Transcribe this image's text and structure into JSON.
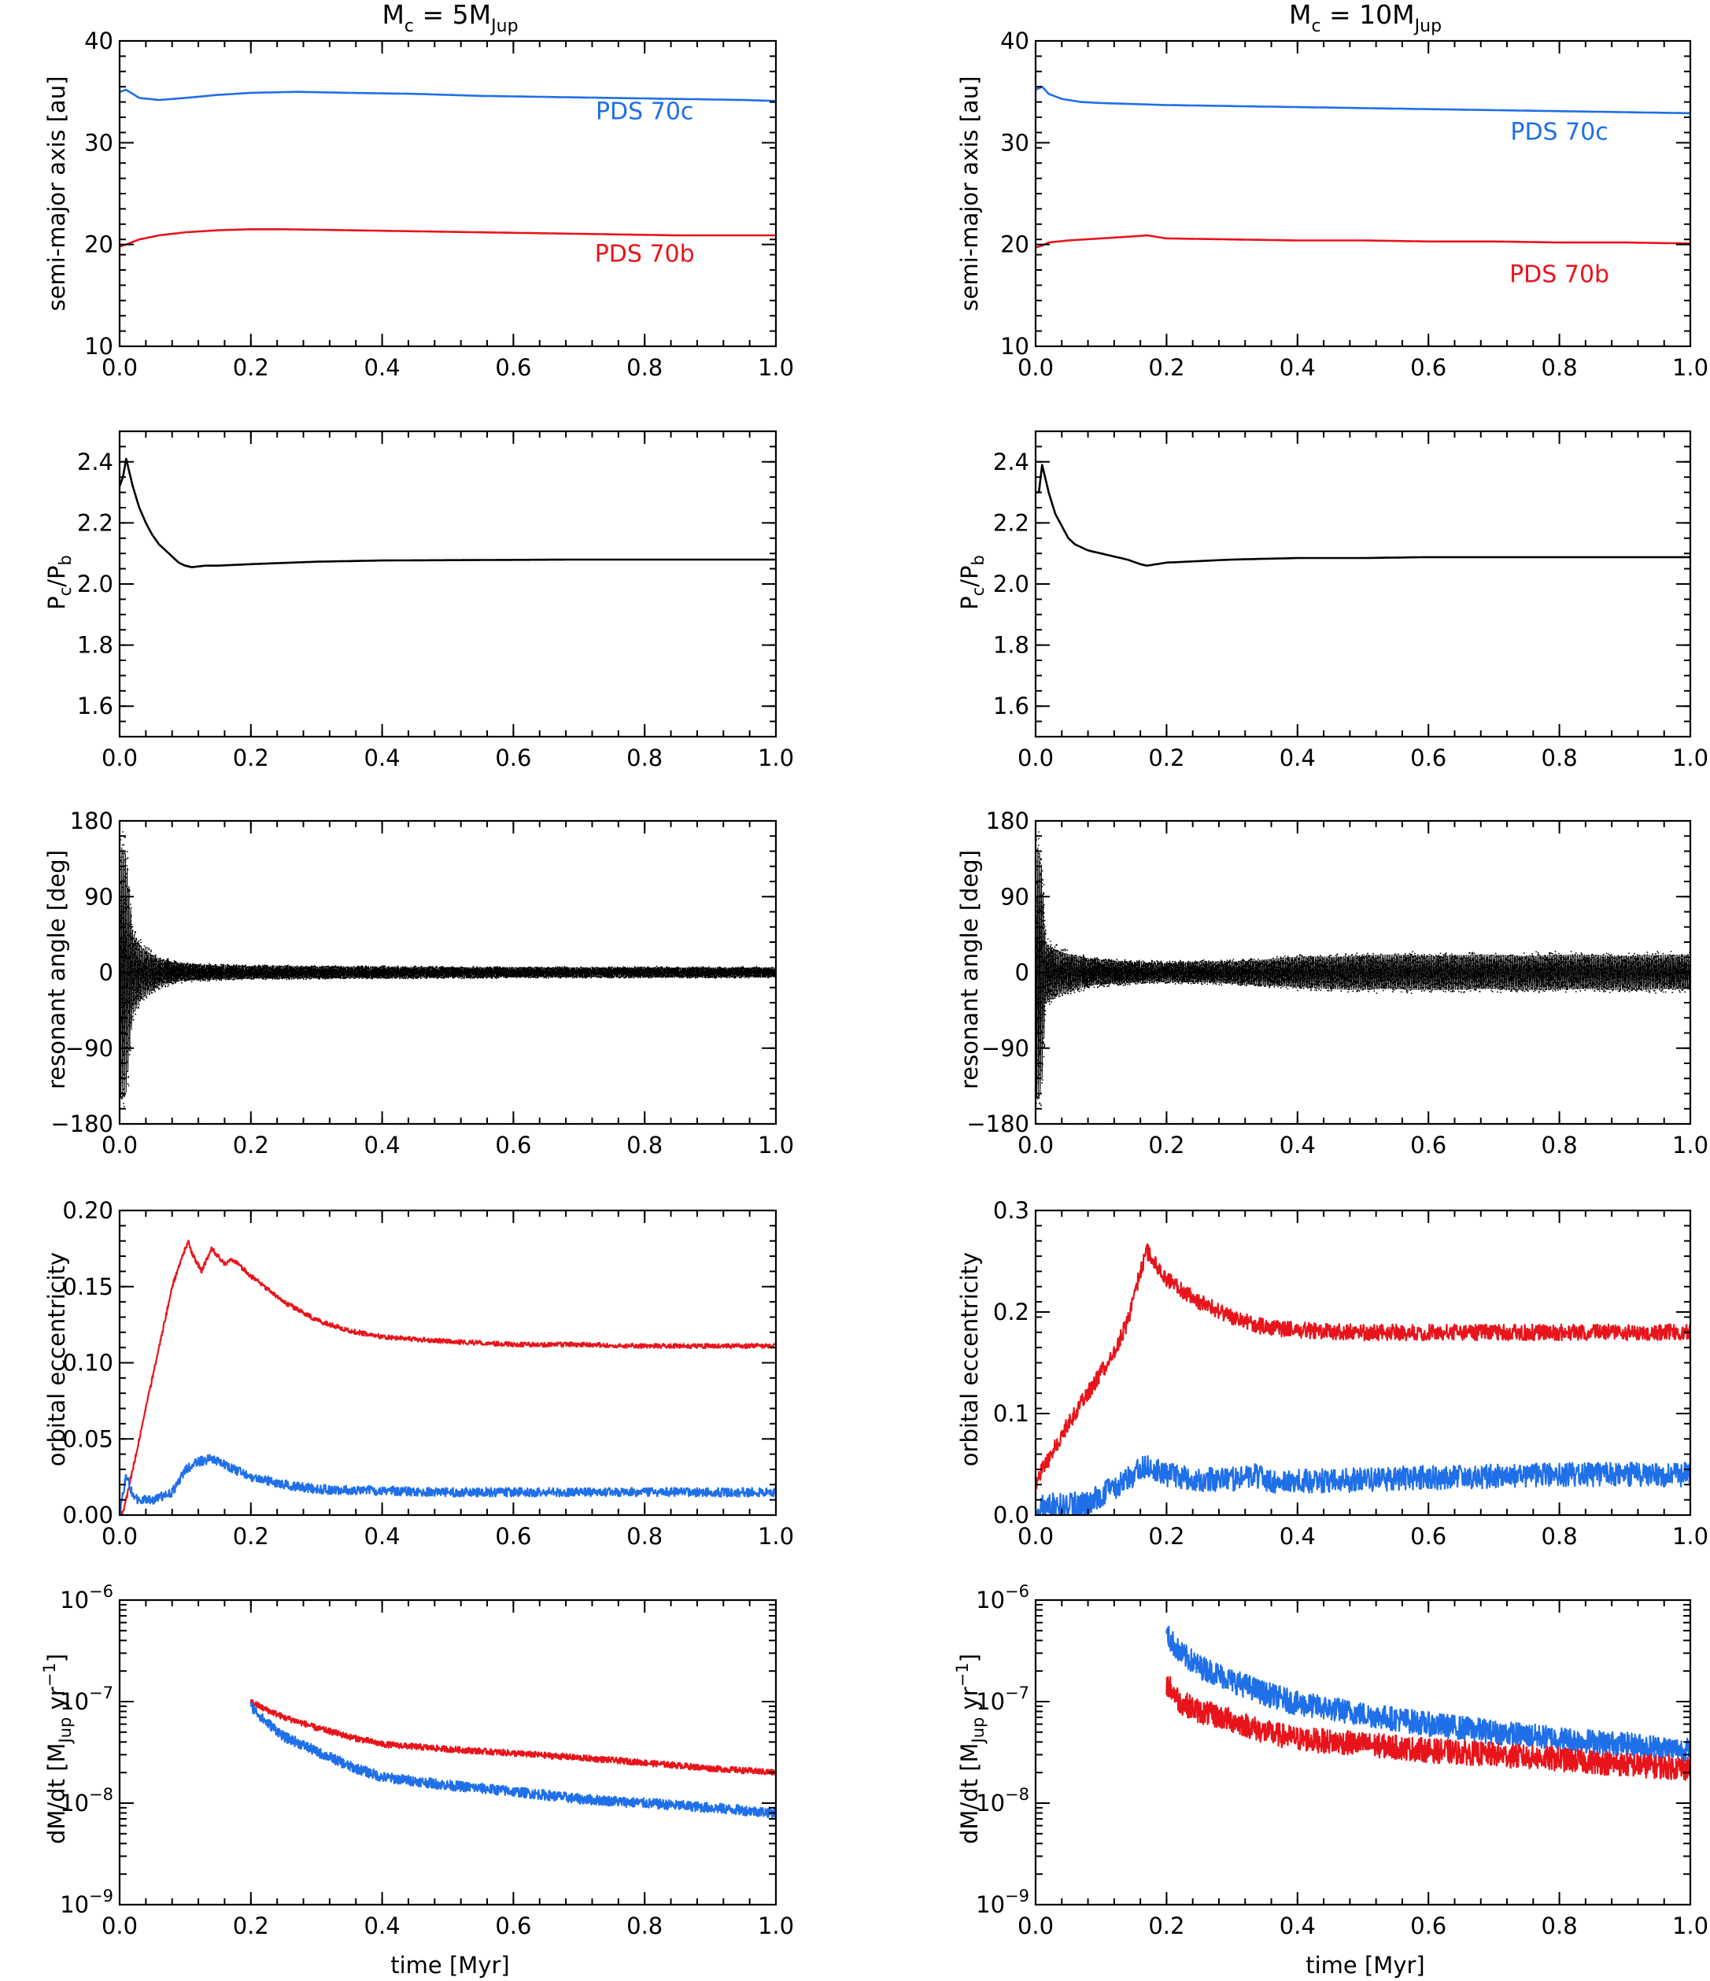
{
  "figure": {
    "columns": [
      {
        "title": "M_c = 5M_Jup",
        "title_parts": {
          "main": "M",
          "sub": "c",
          "eq": " = 5M",
          "sub2": "Jup"
        }
      },
      {
        "title": "M_c = 10M_Jup",
        "title_parts": {
          "main": "M",
          "sub": "c",
          "eq": " = 10M",
          "sub2": "Jup"
        }
      }
    ],
    "xlabel": "time [Myr]",
    "row_ylabels": {
      "sma": "semi-major axis [au]",
      "period": "P_c/P_b",
      "angle": "resonant angle [deg]",
      "ecc": "orbital eccentricity",
      "mdot": "dM/dt [M_Jup yr^-1]"
    },
    "colors": {
      "red": "#e8141b",
      "blue": "#1f6fe8",
      "black": "#000000"
    }
  },
  "chart_data": [
    {
      "id": "sma-5",
      "type": "line",
      "ylabel": "semi-major axis [au]",
      "xlabel": "",
      "xlim": [
        0,
        1
      ],
      "ylim": [
        10,
        40
      ],
      "xticks": [
        "0.0",
        "0.2",
        "0.4",
        "0.6",
        "0.8",
        "1.0"
      ],
      "yticks": [
        "10",
        "20",
        "30",
        "40"
      ],
      "annotations": [
        {
          "text": "PDS 70c",
          "color": "#1f6fe8",
          "x": 0.8,
          "y": 32.3
        },
        {
          "text": "PDS 70b",
          "color": "#e8141b",
          "x": 0.8,
          "y": 18.3
        }
      ],
      "series": [
        {
          "color": "#1f6fe8",
          "x": [
            0,
            0.01,
            0.03,
            0.06,
            0.1,
            0.15,
            0.2,
            0.27,
            0.35,
            0.45,
            0.55,
            0.65,
            0.75,
            0.85,
            0.95,
            1.0
          ],
          "y": [
            35.0,
            35.2,
            34.4,
            34.2,
            34.4,
            34.7,
            34.9,
            35.0,
            34.9,
            34.8,
            34.6,
            34.5,
            34.4,
            34.3,
            34.2,
            34.1
          ]
        },
        {
          "color": "#e8141b",
          "x": [
            0,
            0.01,
            0.03,
            0.06,
            0.1,
            0.15,
            0.2,
            0.25,
            0.35,
            0.45,
            0.55,
            0.65,
            0.75,
            0.85,
            0.95,
            1.0
          ],
          "y": [
            19.8,
            20.0,
            20.5,
            20.9,
            21.2,
            21.4,
            21.5,
            21.5,
            21.4,
            21.3,
            21.2,
            21.1,
            21.0,
            20.9,
            20.9,
            20.9
          ]
        }
      ]
    },
    {
      "id": "sma-10",
      "type": "line",
      "ylabel": "semi-major axis [au]",
      "xlabel": "",
      "xlim": [
        0,
        1
      ],
      "ylim": [
        10,
        40
      ],
      "xticks": [
        "0.0",
        "0.2",
        "0.4",
        "0.6",
        "0.8",
        "1.0"
      ],
      "yticks": [
        "10",
        "20",
        "30",
        "40"
      ],
      "annotations": [
        {
          "text": "PDS 70c",
          "color": "#1f6fe8",
          "x": 0.8,
          "y": 30.3
        },
        {
          "text": "PDS 70b",
          "color": "#e8141b",
          "x": 0.8,
          "y": 16.3
        }
      ],
      "series": [
        {
          "color": "#1f6fe8",
          "x": [
            0,
            0.01,
            0.02,
            0.04,
            0.07,
            0.1,
            0.15,
            0.2,
            0.3,
            0.4,
            0.5,
            0.6,
            0.7,
            0.8,
            0.9,
            1.0
          ],
          "y": [
            35.2,
            35.5,
            34.8,
            34.3,
            34.0,
            33.9,
            33.8,
            33.7,
            33.6,
            33.5,
            33.4,
            33.3,
            33.2,
            33.1,
            33.0,
            32.9
          ]
        },
        {
          "color": "#e8141b",
          "x": [
            0,
            0.01,
            0.02,
            0.05,
            0.1,
            0.15,
            0.17,
            0.2,
            0.3,
            0.4,
            0.5,
            0.6,
            0.7,
            0.8,
            0.9,
            1.0
          ],
          "y": [
            19.7,
            19.9,
            20.2,
            20.4,
            20.6,
            20.8,
            20.9,
            20.6,
            20.5,
            20.4,
            20.4,
            20.3,
            20.3,
            20.2,
            20.2,
            20.1
          ]
        }
      ]
    },
    {
      "id": "period-5",
      "type": "line",
      "ylabel": "P_c/P_b",
      "xlabel": "",
      "xlim": [
        0,
        1
      ],
      "ylim": [
        1.5,
        2.5
      ],
      "xticks": [
        "0.0",
        "0.2",
        "0.4",
        "0.6",
        "0.8",
        "1.0"
      ],
      "yticks": [
        "1.6",
        "1.8",
        "2.0",
        "2.2",
        "2.4"
      ],
      "series": [
        {
          "color": "#000000",
          "x": [
            0,
            0.005,
            0.01,
            0.02,
            0.03,
            0.04,
            0.05,
            0.06,
            0.07,
            0.08,
            0.09,
            0.1,
            0.11,
            0.13,
            0.15,
            0.2,
            0.3,
            0.4,
            0.5,
            0.6,
            0.7,
            0.8,
            0.9,
            1.0
          ],
          "y": [
            2.32,
            2.35,
            2.41,
            2.32,
            2.25,
            2.2,
            2.16,
            2.13,
            2.11,
            2.09,
            2.07,
            2.06,
            2.055,
            2.06,
            2.06,
            2.065,
            2.073,
            2.077,
            2.078,
            2.079,
            2.08,
            2.08,
            2.08,
            2.08
          ]
        }
      ]
    },
    {
      "id": "period-10",
      "type": "line",
      "ylabel": "P_c/P_b",
      "xlabel": "",
      "xlim": [
        0,
        1
      ],
      "ylim": [
        1.5,
        2.5
      ],
      "xticks": [
        "0.0",
        "0.2",
        "0.4",
        "0.6",
        "0.8",
        "1.0"
      ],
      "yticks": [
        "1.6",
        "1.8",
        "2.0",
        "2.2",
        "2.4"
      ],
      "series": [
        {
          "color": "#000000",
          "x": [
            0,
            0.005,
            0.01,
            0.02,
            0.03,
            0.04,
            0.05,
            0.06,
            0.08,
            0.1,
            0.12,
            0.14,
            0.16,
            0.17,
            0.2,
            0.3,
            0.4,
            0.5,
            0.6,
            0.7,
            0.8,
            0.9,
            1.0
          ],
          "y": [
            2.3,
            2.3,
            2.39,
            2.3,
            2.23,
            2.19,
            2.15,
            2.13,
            2.11,
            2.1,
            2.09,
            2.08,
            2.065,
            2.06,
            2.07,
            2.08,
            2.085,
            2.085,
            2.088,
            2.088,
            2.088,
            2.088,
            2.088
          ]
        }
      ]
    },
    {
      "id": "angle-5",
      "type": "scatter",
      "ylabel": "resonant angle [deg]",
      "xlabel": "",
      "xlim": [
        0,
        1
      ],
      "ylim": [
        -180,
        180
      ],
      "xticks": [
        "0.0",
        "0.2",
        "0.4",
        "0.6",
        "0.8",
        "1.0"
      ],
      "yticks": [
        "-180",
        "-90",
        "0",
        "90",
        "180"
      ],
      "envelope": {
        "color": "#000000",
        "x": [
          0,
          0.005,
          0.01,
          0.02,
          0.03,
          0.04,
          0.05,
          0.06,
          0.08,
          0.1,
          0.15,
          0.2,
          0.4,
          0.6,
          0.8,
          1.0
        ],
        "amplitude": [
          180,
          180,
          170,
          60,
          42,
          33,
          26,
          20,
          15,
          12,
          10,
          9,
          8,
          7,
          7,
          7
        ]
      }
    },
    {
      "id": "angle-10",
      "type": "scatter",
      "ylabel": "resonant angle [deg]",
      "xlabel": "",
      "xlim": [
        0,
        1
      ],
      "ylim": [
        -180,
        180
      ],
      "xticks": [
        "0.0",
        "0.2",
        "0.4",
        "0.6",
        "0.8",
        "1.0"
      ],
      "yticks": [
        "-180",
        "-90",
        "0",
        "90",
        "180"
      ],
      "envelope": {
        "color": "#000000",
        "x": [
          0,
          0.005,
          0.01,
          0.015,
          0.02,
          0.04,
          0.06,
          0.08,
          0.1,
          0.15,
          0.2,
          0.3,
          0.4,
          0.5,
          0.6,
          0.7,
          0.8,
          0.9,
          1.0
        ],
        "amplitude": [
          180,
          180,
          150,
          45,
          40,
          30,
          25,
          20,
          18,
          15,
          14,
          16,
          22,
          25,
          25,
          25,
          25,
          25,
          25
        ]
      }
    },
    {
      "id": "ecc-5",
      "type": "line",
      "ylabel": "orbital eccentricity",
      "xlabel": "",
      "xlim": [
        0,
        1
      ],
      "ylim": [
        0,
        0.2
      ],
      "xticks": [
        "0.0",
        "0.2",
        "0.4",
        "0.6",
        "0.8",
        "1.0"
      ],
      "yticks": [
        "0.00",
        "0.05",
        "0.10",
        "0.15",
        "0.20"
      ],
      "series": [
        {
          "color": "#e8141b",
          "x": [
            0,
            0.005,
            0.01,
            0.02,
            0.04,
            0.06,
            0.08,
            0.1,
            0.105,
            0.11,
            0.125,
            0.14,
            0.15,
            0.16,
            0.17,
            0.18,
            0.2,
            0.25,
            0.3,
            0.35,
            0.4,
            0.5,
            0.6,
            0.7,
            0.8,
            0.9,
            1.0
          ],
          "y": [
            0.0,
            0.002,
            0.01,
            0.03,
            0.07,
            0.11,
            0.15,
            0.175,
            0.18,
            0.172,
            0.16,
            0.175,
            0.17,
            0.165,
            0.168,
            0.165,
            0.157,
            0.14,
            0.128,
            0.121,
            0.117,
            0.114,
            0.112,
            0.112,
            0.111,
            0.111,
            0.111
          ],
          "noise": 0.0015
        },
        {
          "color": "#1f6fe8",
          "x": [
            0,
            0.005,
            0.01,
            0.015,
            0.02,
            0.03,
            0.05,
            0.08,
            0.1,
            0.12,
            0.14,
            0.16,
            0.2,
            0.25,
            0.3,
            0.4,
            0.5,
            0.6,
            0.7,
            0.8,
            0.9,
            1.0
          ],
          "y": [
            0.0,
            0.015,
            0.025,
            0.02,
            0.012,
            0.01,
            0.01,
            0.015,
            0.03,
            0.035,
            0.037,
            0.033,
            0.025,
            0.02,
            0.017,
            0.016,
            0.015,
            0.015,
            0.015,
            0.015,
            0.015,
            0.015
          ],
          "noise": 0.003
        }
      ]
    },
    {
      "id": "ecc-10",
      "type": "line",
      "ylabel": "orbital eccentricity",
      "xlabel": "",
      "xlim": [
        0,
        1
      ],
      "ylim": [
        0,
        0.3
      ],
      "xticks": [
        "0.0",
        "0.2",
        "0.4",
        "0.6",
        "0.8",
        "1.0"
      ],
      "yticks": [
        "0.0",
        "0.1",
        "0.2",
        "0.3"
      ],
      "series": [
        {
          "color": "#e8141b",
          "x": [
            0,
            0.005,
            0.01,
            0.02,
            0.05,
            0.08,
            0.1,
            0.12,
            0.14,
            0.16,
            0.17,
            0.18,
            0.2,
            0.25,
            0.3,
            0.35,
            0.4,
            0.5,
            0.6,
            0.7,
            0.8,
            0.9,
            1.0
          ],
          "y": [
            0.03,
            0.04,
            0.045,
            0.055,
            0.09,
            0.12,
            0.14,
            0.16,
            0.19,
            0.24,
            0.26,
            0.25,
            0.232,
            0.21,
            0.195,
            0.185,
            0.182,
            0.18,
            0.18,
            0.18,
            0.18,
            0.18,
            0.18
          ],
          "noise": 0.008
        },
        {
          "color": "#1f6fe8",
          "x": [
            0,
            0.005,
            0.01,
            0.02,
            0.05,
            0.08,
            0.1,
            0.13,
            0.16,
            0.17,
            0.2,
            0.25,
            0.3,
            0.33,
            0.36,
            0.4,
            0.5,
            0.6,
            0.7,
            0.8,
            0.9,
            1.0
          ],
          "y": [
            0.0,
            0.005,
            0.008,
            0.01,
            0.01,
            0.012,
            0.02,
            0.03,
            0.045,
            0.05,
            0.04,
            0.035,
            0.035,
            0.04,
            0.033,
            0.033,
            0.035,
            0.037,
            0.038,
            0.04,
            0.04,
            0.04
          ],
          "noise": 0.012
        }
      ]
    },
    {
      "id": "mdot-5",
      "type": "line",
      "ylabel": "dM/dt [M_Jup yr^-1]",
      "xlabel": "time [Myr]",
      "yscale": "log",
      "xlim": [
        0,
        1
      ],
      "ylim": [
        1e-09,
        1e-06
      ],
      "xticks": [
        "0.0",
        "0.2",
        "0.4",
        "0.6",
        "0.8",
        "1.0"
      ],
      "yticks": [
        "10^-9",
        "10^-8",
        "10^-7",
        "10^-6"
      ],
      "series": [
        {
          "color": "#e8141b",
          "x": [
            0.2,
            0.22,
            0.25,
            0.3,
            0.35,
            0.4,
            0.5,
            0.6,
            0.7,
            0.8,
            0.9,
            1.0
          ],
          "y": [
            1e-07,
            8.5e-08,
            7e-08,
            5.5e-08,
            4.5e-08,
            3.8e-08,
            3.4e-08,
            3.1e-08,
            2.8e-08,
            2.5e-08,
            2.2e-08,
            2e-08
          ],
          "noise": 0.03
        },
        {
          "color": "#1f6fe8",
          "x": [
            0.2,
            0.22,
            0.25,
            0.3,
            0.35,
            0.4,
            0.5,
            0.6,
            0.7,
            0.8,
            0.9,
            1.0
          ],
          "y": [
            9e-08,
            6.5e-08,
            4.5e-08,
            3.2e-08,
            2.3e-08,
            1.8e-08,
            1.5e-08,
            1.3e-08,
            1.1e-08,
            1e-08,
            9e-09,
            8e-09
          ],
          "noise": 0.05
        }
      ]
    },
    {
      "id": "mdot-10",
      "type": "line",
      "ylabel": "dM/dt [M_Jup yr^-1]",
      "xlabel": "time [Myr]",
      "yscale": "log",
      "xlim": [
        0,
        1
      ],
      "ylim": [
        1e-09,
        1e-06
      ],
      "xticks": [
        "0.0",
        "0.2",
        "0.4",
        "0.6",
        "0.8",
        "1.0"
      ],
      "yticks": [
        "10^-9",
        "10^-8",
        "10^-7",
        "10^-6"
      ],
      "series": [
        {
          "color": "#1f6fe8",
          "x": [
            0.2,
            0.22,
            0.25,
            0.3,
            0.35,
            0.4,
            0.5,
            0.6,
            0.7,
            0.8,
            0.9,
            1.0
          ],
          "y": [
            4.5e-07,
            3e-07,
            2.2e-07,
            1.6e-07,
            1.2e-07,
            9.5e-08,
            7.5e-08,
            6e-08,
            5e-08,
            4.3e-08,
            3.8e-08,
            3.3e-08
          ],
          "noise": 0.12
        },
        {
          "color": "#e8141b",
          "x": [
            0.2,
            0.22,
            0.25,
            0.3,
            0.35,
            0.4,
            0.5,
            0.6,
            0.7,
            0.8,
            0.9,
            1.0
          ],
          "y": [
            1.5e-07,
            1e-07,
            8e-08,
            6.5e-08,
            5e-08,
            4.3e-08,
            3.8e-08,
            3.3e-08,
            3e-08,
            2.7e-08,
            2.4e-08,
            2.2e-08
          ],
          "noise": 0.12
        }
      ]
    }
  ]
}
